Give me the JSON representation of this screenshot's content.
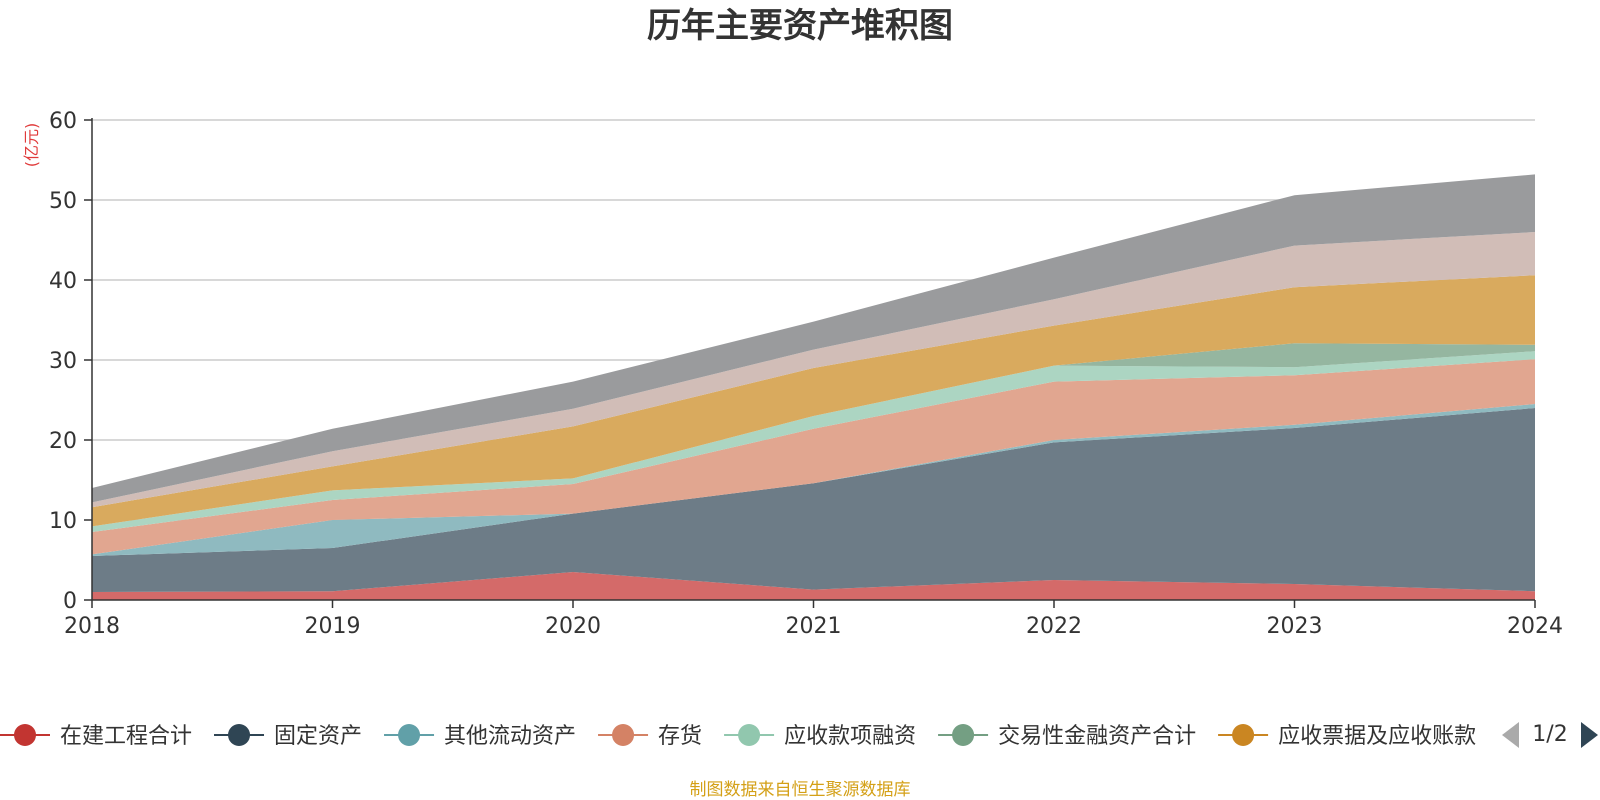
{
  "chart_data": {
    "type": "area",
    "stacked": true,
    "title": "历年主要资产堆积图",
    "y_unit": "(亿元)",
    "x": [
      "2018",
      "2019",
      "2020",
      "2021",
      "2022",
      "2023",
      "2024"
    ],
    "ylim": [
      0,
      60
    ],
    "yticks": [
      0,
      10,
      20,
      30,
      40,
      50,
      60
    ],
    "grid": true,
    "legend_position": "bottom",
    "legend_page": "1/2",
    "source": "制图数据来自恒生聚源数据库",
    "series": [
      {
        "name": "在建工程合计",
        "color": "#c23531",
        "fill": "#d46a69",
        "values": [
          1.0,
          1.1,
          3.5,
          1.3,
          2.5,
          2.0,
          1.1
        ]
      },
      {
        "name": "固定资产",
        "color": "#2f4554",
        "fill": "#6d7c87",
        "values": [
          4.5,
          5.4,
          7.3,
          13.3,
          17.2,
          19.5,
          22.9
        ]
      },
      {
        "name": "其他流动资产",
        "color": "#61a0a8",
        "fill": "#8fbac0",
        "values": [
          0.2,
          3.5,
          0.0,
          0.0,
          0.3,
          0.4,
          0.5
        ]
      },
      {
        "name": "存货",
        "color": "#d48265",
        "fill": "#e1a690",
        "values": [
          2.8,
          2.5,
          3.7,
          6.8,
          7.3,
          6.2,
          5.6
        ]
      },
      {
        "name": "应收款项融资",
        "color": "#91c7ae",
        "fill": "#acd5c2",
        "values": [
          0.7,
          1.2,
          0.7,
          1.6,
          2.0,
          1.0,
          1.0
        ]
      },
      {
        "name": "交易性金融资产合计",
        "color": "#749f83",
        "fill": "#95b6a0",
        "values": [
          0.0,
          0.0,
          0.0,
          0.0,
          0.0,
          3.0,
          0.8
        ]
      },
      {
        "name": "应收票据及应收账款",
        "color": "#ca8622",
        "fill": "#d9aa5e",
        "values": [
          2.4,
          3.0,
          6.5,
          6.0,
          5.0,
          7.0,
          8.7
        ]
      },
      {
        "name": "",
        "color": "#bda29a",
        "fill": "#d1bdb7",
        "values": [
          0.6,
          1.9,
          2.2,
          2.3,
          3.3,
          5.2,
          5.4
        ]
      },
      {
        "name": "",
        "color": "#6e7074",
        "fill": "#9a9b9d",
        "values": [
          1.8,
          2.8,
          3.4,
          3.5,
          5.2,
          6.3,
          7.2
        ]
      }
    ]
  }
}
